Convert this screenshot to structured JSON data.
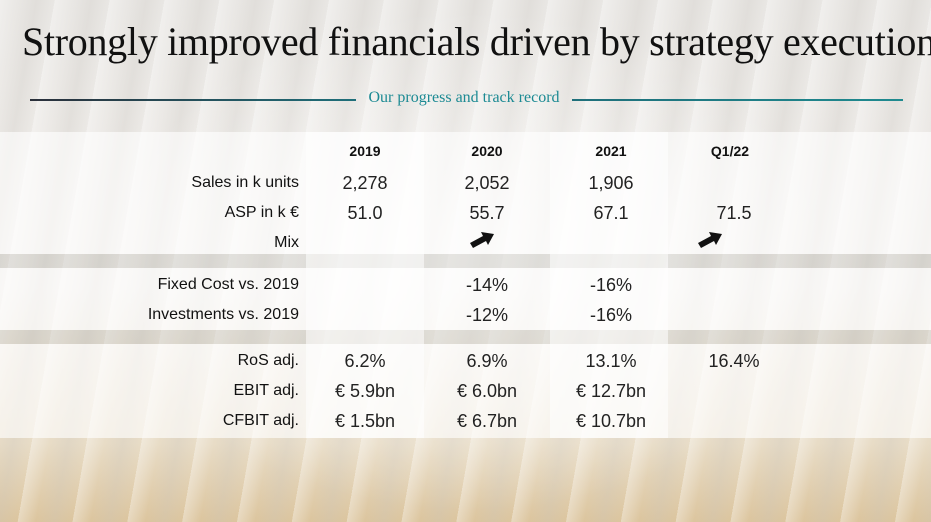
{
  "title": "Strongly improved financials driven by strategy execution",
  "subtitle": "Our progress and track record",
  "colors": {
    "accent_teal": "#1c8a93",
    "rule_dark": "#2a2f3a"
  },
  "columns": [
    "2019",
    "2020",
    "2021",
    "Q1/22"
  ],
  "rows": [
    {
      "label": "Sales in k units",
      "values": [
        "2,278",
        "2,052",
        "1,906",
        ""
      ]
    },
    {
      "label": "ASP in k €",
      "values": [
        "51.0",
        "55.7",
        "67.1",
        "71.5"
      ]
    },
    {
      "label": "Mix",
      "values": [
        "",
        "arrow-up-right-icon",
        "",
        "arrow-up-right-icon"
      ]
    },
    {
      "label": "Fixed Cost vs. 2019",
      "values": [
        "",
        "-14%",
        "-16%",
        ""
      ]
    },
    {
      "label": "Investments vs. 2019",
      "values": [
        "",
        "-12%",
        "-16%",
        ""
      ]
    },
    {
      "label": "RoS adj.",
      "values": [
        "6.2%",
        "6.9%",
        "13.1%",
        "16.4%"
      ]
    },
    {
      "label": "EBIT adj.",
      "values": [
        "€ 5.9bn",
        "€ 6.0bn",
        "€ 12.7bn",
        ""
      ]
    },
    {
      "label": "CFBIT adj.",
      "values": [
        "€ 1.5bn",
        "€ 6.7bn",
        "€ 10.7bn",
        ""
      ]
    }
  ]
}
